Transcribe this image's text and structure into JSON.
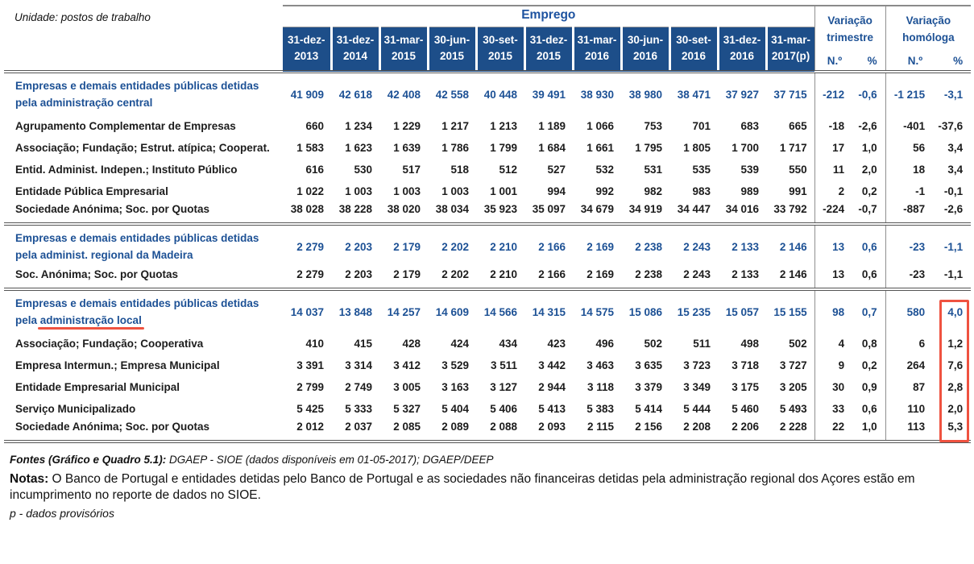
{
  "meta": {
    "unit_label": "Unidade: postos de trabalho"
  },
  "theme": {
    "header_bg": "#1d4e89",
    "title_blue": "#1e53a0",
    "group_blue": "#1d5195",
    "annotation_red": "#ef5240"
  },
  "table": {
    "title": "Emprego",
    "periods": [
      [
        "31-dez-",
        "2013"
      ],
      [
        "31-dez-",
        "2014"
      ],
      [
        "31-mar-",
        "2015"
      ],
      [
        "30-jun-",
        "2015"
      ],
      [
        "30-set-",
        "2015"
      ],
      [
        "31-dez-",
        "2015"
      ],
      [
        "31-mar-",
        "2016"
      ],
      [
        "30-jun-",
        "2016"
      ],
      [
        "30-set-",
        "2016"
      ],
      [
        "31-dez-",
        "2016"
      ],
      [
        "31-mar-",
        "2017(p)"
      ]
    ],
    "variation_quarter": {
      "title_line1": "Variação",
      "title_line2": "trimestre",
      "col_n": "N.º",
      "col_pct": "%"
    },
    "variation_yoy": {
      "title_line1": "Variação",
      "title_line2": "homóloga",
      "col_n": "N.º",
      "col_pct": "%"
    },
    "sections": [
      {
        "header": {
          "label": "Empresas e demais entidades públicas detidas pela administração central",
          "values": [
            "41 909",
            "42 618",
            "42 408",
            "42 558",
            "40 448",
            "39 491",
            "38 930",
            "38 980",
            "38 471",
            "37 927",
            "37 715"
          ],
          "var_quarter": [
            "-212",
            "-0,6"
          ],
          "var_yoy": [
            "-1 215",
            "-3,1"
          ]
        },
        "rows": [
          {
            "label": "Agrupamento Complementar de Empresas",
            "values": [
              "660",
              "1 234",
              "1 229",
              "1 217",
              "1 213",
              "1 189",
              "1 066",
              "753",
              "701",
              "683",
              "665"
            ],
            "var_quarter": [
              "-18",
              "-2,6"
            ],
            "var_yoy": [
              "-401",
              "-37,6"
            ]
          },
          {
            "label": "Associação; Fundação; Estrut. atípica; Cooperat.",
            "values": [
              "1 583",
              "1 623",
              "1 639",
              "1 786",
              "1 799",
              "1 684",
              "1 661",
              "1 795",
              "1 805",
              "1 700",
              "1 717"
            ],
            "var_quarter": [
              "17",
              "1,0"
            ],
            "var_yoy": [
              "56",
              "3,4"
            ]
          },
          {
            "label": "Entid. Administ. Indepen.; Instituto Público",
            "values": [
              "616",
              "530",
              "517",
              "518",
              "512",
              "527",
              "532",
              "531",
              "535",
              "539",
              "550"
            ],
            "var_quarter": [
              "11",
              "2,0"
            ],
            "var_yoy": [
              "18",
              "3,4"
            ]
          },
          {
            "label": "Entidade Pública Empresarial",
            "values": [
              "1 022",
              "1 003",
              "1 003",
              "1 003",
              "1 001",
              "994",
              "992",
              "982",
              "983",
              "989",
              "991"
            ],
            "var_quarter": [
              "2",
              "0,2"
            ],
            "var_yoy": [
              "-1",
              "-0,1"
            ]
          },
          {
            "label": "Sociedade Anónima; Soc. por Quotas",
            "values": [
              "38 028",
              "38 228",
              "38 020",
              "38 034",
              "35 923",
              "35 097",
              "34 679",
              "34 919",
              "34 447",
              "34 016",
              "33 792"
            ],
            "var_quarter": [
              "-224",
              "-0,7"
            ],
            "var_yoy": [
              "-887",
              "-2,6"
            ]
          }
        ]
      },
      {
        "header": {
          "label": "Empresas e demais entidades públicas detidas pela administ. regional da Madeira",
          "values": [
            "2 279",
            "2 203",
            "2 179",
            "2 202",
            "2 210",
            "2 166",
            "2 169",
            "2 238",
            "2 243",
            "2 133",
            "2 146"
          ],
          "var_quarter": [
            "13",
            "0,6"
          ],
          "var_yoy": [
            "-23",
            "-1,1"
          ]
        },
        "rows": [
          {
            "label": "Soc. Anónima; Soc. por Quotas",
            "values": [
              "2 279",
              "2 203",
              "2 179",
              "2 202",
              "2 210",
              "2 166",
              "2 169",
              "2 238",
              "2 243",
              "2 133",
              "2 146"
            ],
            "var_quarter": [
              "13",
              "0,6"
            ],
            "var_yoy": [
              "-23",
              "-1,1"
            ]
          }
        ]
      },
      {
        "header": {
          "label_prefix": "Empresas e demais entidades públicas detidas pela ",
          "label_underlined": "administração local",
          "values": [
            "14 037",
            "13 848",
            "14 257",
            "14 609",
            "14 566",
            "14 315",
            "14 575",
            "15 086",
            "15 235",
            "15 057",
            "15 155"
          ],
          "var_quarter": [
            "98",
            "0,7"
          ],
          "var_yoy": [
            "580",
            "4,0"
          ]
        },
        "rows": [
          {
            "label": "Associação; Fundação; Cooperativa",
            "values": [
              "410",
              "415",
              "428",
              "424",
              "434",
              "423",
              "496",
              "502",
              "511",
              "498",
              "502"
            ],
            "var_quarter": [
              "4",
              "0,8"
            ],
            "var_yoy": [
              "6",
              "1,2"
            ]
          },
          {
            "label": "Empresa Intermun.; Empresa Municipal",
            "values": [
              "3 391",
              "3 314",
              "3 412",
              "3 529",
              "3 511",
              "3 442",
              "3 463",
              "3 635",
              "3 723",
              "3 718",
              "3 727"
            ],
            "var_quarter": [
              "9",
              "0,2"
            ],
            "var_yoy": [
              "264",
              "7,6"
            ]
          },
          {
            "label": "Entidade Empresarial Municipal",
            "values": [
              "2 799",
              "2 749",
              "3 005",
              "3 163",
              "3 127",
              "2 944",
              "3 118",
              "3 379",
              "3 349",
              "3 175",
              "3 205"
            ],
            "var_quarter": [
              "30",
              "0,9"
            ],
            "var_yoy": [
              "87",
              "2,8"
            ]
          },
          {
            "label": "Serviço Municipalizado",
            "values": [
              "5 425",
              "5 333",
              "5 327",
              "5 404",
              "5 406",
              "5 413",
              "5 383",
              "5 414",
              "5 444",
              "5 460",
              "5 493"
            ],
            "var_quarter": [
              "33",
              "0,6"
            ],
            "var_yoy": [
              "110",
              "2,0"
            ]
          },
          {
            "label": "Sociedade Anónima; Soc. por Quotas",
            "values": [
              "2 012",
              "2 037",
              "2 085",
              "2 089",
              "2 088",
              "2 093",
              "2 115",
              "2 156",
              "2 208",
              "2 206",
              "2 228"
            ],
            "var_quarter": [
              "22",
              "1,0"
            ],
            "var_yoy": [
              "113",
              "5,3"
            ]
          }
        ]
      }
    ]
  },
  "footer": {
    "fontes_label": "Fontes (Gráfico e Quadro 5.1):",
    "fontes_text": " DGAEP - SIOE (dados disponíveis em 01-05-2017); DGAEP/DEEP",
    "notas_label": "Notas:",
    "notas_text": " O Banco de Portugal e entidades detidas pelo Banco de Portugal e as sociedades não financeiras detidas pela administração regional dos Açores estão em incumprimento no reporte de dados no SIOE.",
    "provisional_note": "p - dados provisórios"
  }
}
